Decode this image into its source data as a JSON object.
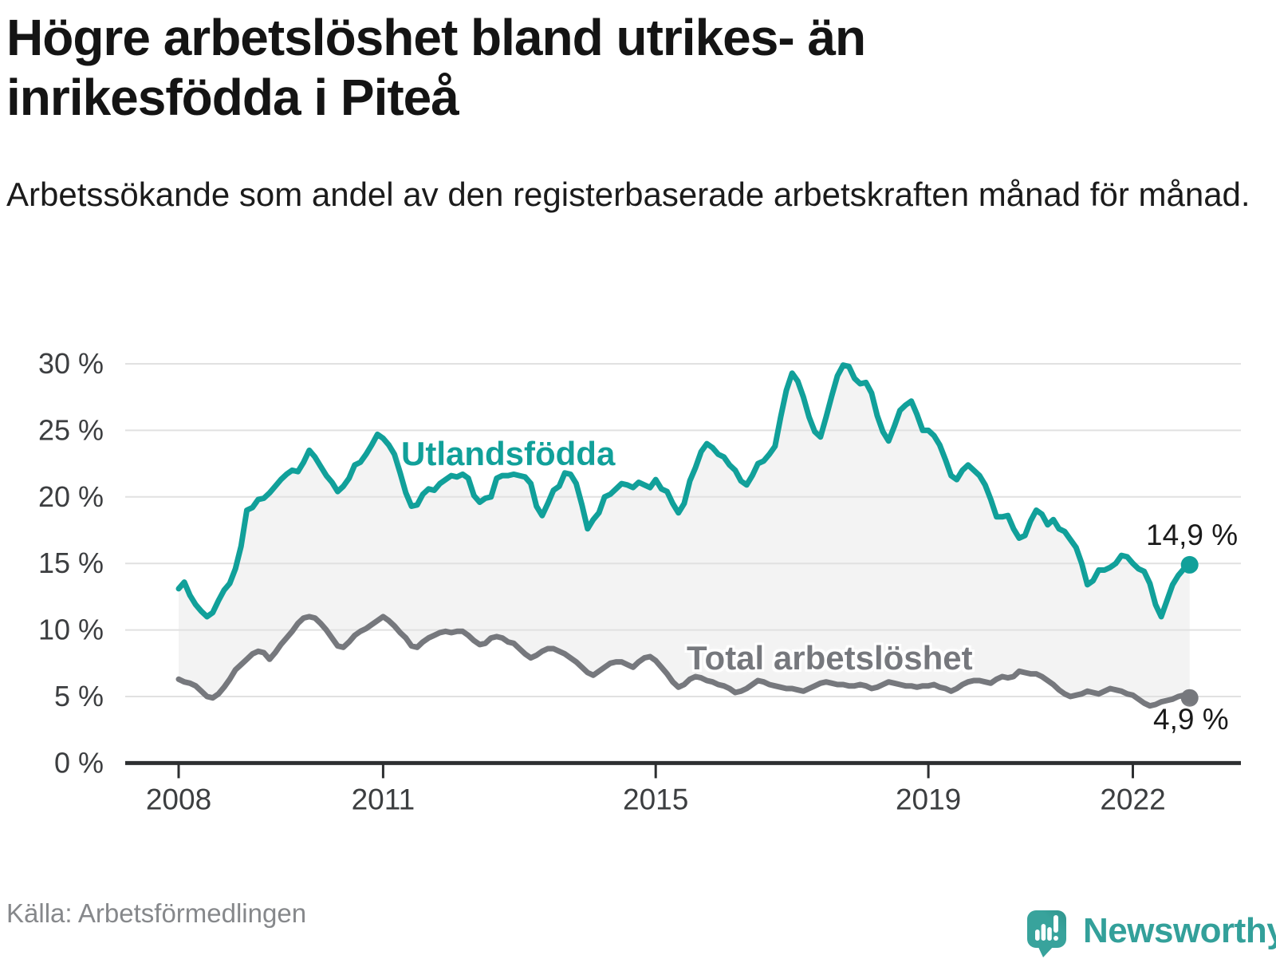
{
  "header": {
    "title_line1": "Högre arbetslöshet bland utrikes- än",
    "title_line2": "inrikesfödda i Piteå",
    "subtitle": "Arbetssökande som andel av den registerbaserade arbetskraften månad för månad."
  },
  "footer": {
    "source": "Källa: Arbetsförmedlingen",
    "brand": "Newsworthy"
  },
  "colors": {
    "foreign_born_line": "#11a09a",
    "total_line": "#76787d",
    "band_fill": "#f3f3f3",
    "gridline": "#e1e1e1",
    "axis": "#2d2f31",
    "tick_label": "#3c3e40",
    "title_text": "#141414",
    "source_text": "#86888b",
    "brand_teal": "#38a39c"
  },
  "chart_data": {
    "type": "line",
    "title": "Högre arbetslöshet bland utrikes- än inrikesfödda i Piteå",
    "subtitle": "Arbetssökande som andel av den registerbaserade arbetskraften månad för månad.",
    "unit": "%",
    "frequency": "monthly",
    "x_start": "2008-01",
    "x_end": "2022-11",
    "ylim": [
      0,
      30
    ],
    "grid": true,
    "legend_position": "inline-labels",
    "yticks": [
      "0 %",
      "5 %",
      "10 %",
      "15 %",
      "20 %",
      "25 %",
      "30 %"
    ],
    "ytick_values": [
      0,
      5,
      10,
      15,
      20,
      25,
      30
    ],
    "xticks": [
      {
        "label": "2008",
        "month_index": 0
      },
      {
        "label": "2011",
        "month_index": 36
      },
      {
        "label": "2015",
        "month_index": 84
      },
      {
        "label": "2019",
        "month_index": 132
      },
      {
        "label": "2022",
        "month_index": 168
      }
    ],
    "series": [
      {
        "name": "Utlandsfödda",
        "color": "#11a09a",
        "end_label": "14,9 %",
        "end_value": 14.9,
        "values": [
          13.1,
          13.6,
          12.6,
          11.9,
          11.4,
          11.0,
          11.3,
          12.2,
          13.0,
          13.5,
          14.6,
          16.3,
          19.0,
          19.2,
          19.8,
          19.9,
          20.3,
          20.8,
          21.3,
          21.7,
          22.0,
          21.9,
          22.6,
          23.5,
          23.0,
          22.3,
          21.6,
          21.1,
          20.4,
          20.8,
          21.4,
          22.4,
          22.6,
          23.2,
          23.9,
          24.7,
          24.4,
          23.9,
          23.2,
          21.8,
          20.3,
          19.3,
          19.4,
          20.2,
          20.6,
          20.5,
          21.0,
          21.3,
          21.6,
          21.5,
          21.7,
          21.4,
          20.1,
          19.6,
          19.9,
          20.0,
          21.4,
          21.6,
          21.6,
          21.7,
          21.6,
          21.5,
          21.0,
          19.3,
          18.6,
          19.5,
          20.5,
          20.8,
          21.8,
          21.7,
          21.0,
          19.4,
          17.6,
          18.3,
          18.8,
          20.0,
          20.2,
          20.6,
          21.0,
          20.9,
          20.7,
          21.1,
          20.9,
          20.7,
          21.3,
          20.6,
          20.4,
          19.5,
          18.8,
          19.5,
          21.2,
          22.2,
          23.4,
          24.0,
          23.7,
          23.2,
          23.0,
          22.4,
          22.0,
          21.2,
          20.9,
          21.6,
          22.5,
          22.7,
          23.2,
          23.8,
          26.0,
          28.0,
          29.3,
          28.7,
          27.5,
          26.0,
          24.9,
          24.5,
          26.0,
          27.6,
          29.1,
          29.9,
          29.8,
          28.9,
          28.5,
          28.6,
          27.8,
          26.1,
          24.9,
          24.2,
          25.3,
          26.5,
          26.9,
          27.2,
          26.2,
          25.0,
          25.0,
          24.6,
          23.9,
          22.8,
          21.6,
          21.3,
          22.0,
          22.4,
          22.0,
          21.6,
          20.9,
          19.8,
          18.5,
          18.5,
          18.6,
          17.6,
          16.9,
          17.1,
          18.2,
          19.0,
          18.7,
          17.9,
          18.3,
          17.6,
          17.4,
          16.8,
          16.2,
          15.0,
          13.4,
          13.7,
          14.5,
          14.5,
          14.7,
          15.0,
          15.6,
          15.5,
          15.0,
          14.6,
          14.4,
          13.5,
          11.9,
          11.0,
          12.2,
          13.4,
          14.1,
          14.6,
          14.9
        ]
      },
      {
        "name": "Total arbetslöshet",
        "color": "#76787d",
        "end_label": "4,9 %",
        "end_value": 4.9,
        "values": [
          6.3,
          6.1,
          6.0,
          5.8,
          5.4,
          5.0,
          4.9,
          5.2,
          5.7,
          6.3,
          7.0,
          7.4,
          7.8,
          8.2,
          8.4,
          8.3,
          7.8,
          8.3,
          8.9,
          9.4,
          9.9,
          10.5,
          10.9,
          11.0,
          10.9,
          10.5,
          10.0,
          9.4,
          8.8,
          8.7,
          9.1,
          9.6,
          9.9,
          10.1,
          10.4,
          10.7,
          11.0,
          10.7,
          10.3,
          9.8,
          9.4,
          8.8,
          8.7,
          9.1,
          9.4,
          9.6,
          9.8,
          9.9,
          9.8,
          9.9,
          9.9,
          9.6,
          9.2,
          8.9,
          9.0,
          9.4,
          9.5,
          9.4,
          9.1,
          9.0,
          8.6,
          8.2,
          7.9,
          8.1,
          8.4,
          8.6,
          8.6,
          8.4,
          8.2,
          7.9,
          7.6,
          7.2,
          6.8,
          6.6,
          6.9,
          7.2,
          7.5,
          7.6,
          7.6,
          7.4,
          7.2,
          7.6,
          7.9,
          8.0,
          7.7,
          7.2,
          6.7,
          6.1,
          5.7,
          5.9,
          6.3,
          6.5,
          6.4,
          6.2,
          6.1,
          5.9,
          5.8,
          5.6,
          5.3,
          5.4,
          5.6,
          5.9,
          6.2,
          6.1,
          5.9,
          5.8,
          5.7,
          5.6,
          5.6,
          5.5,
          5.4,
          5.6,
          5.8,
          6.0,
          6.1,
          6.0,
          5.9,
          5.9,
          5.8,
          5.8,
          5.9,
          5.8,
          5.6,
          5.7,
          5.9,
          6.1,
          6.0,
          5.9,
          5.8,
          5.8,
          5.7,
          5.8,
          5.8,
          5.9,
          5.7,
          5.6,
          5.4,
          5.6,
          5.9,
          6.1,
          6.2,
          6.2,
          6.1,
          6.0,
          6.3,
          6.5,
          6.4,
          6.5,
          6.9,
          6.8,
          6.7,
          6.7,
          6.5,
          6.2,
          5.9,
          5.5,
          5.2,
          5.0,
          5.1,
          5.2,
          5.4,
          5.3,
          5.2,
          5.4,
          5.6,
          5.5,
          5.4,
          5.2,
          5.1,
          4.8,
          4.5,
          4.3,
          4.4,
          4.6,
          4.7,
          4.8,
          5.0,
          5.1,
          4.9
        ]
      }
    ]
  }
}
